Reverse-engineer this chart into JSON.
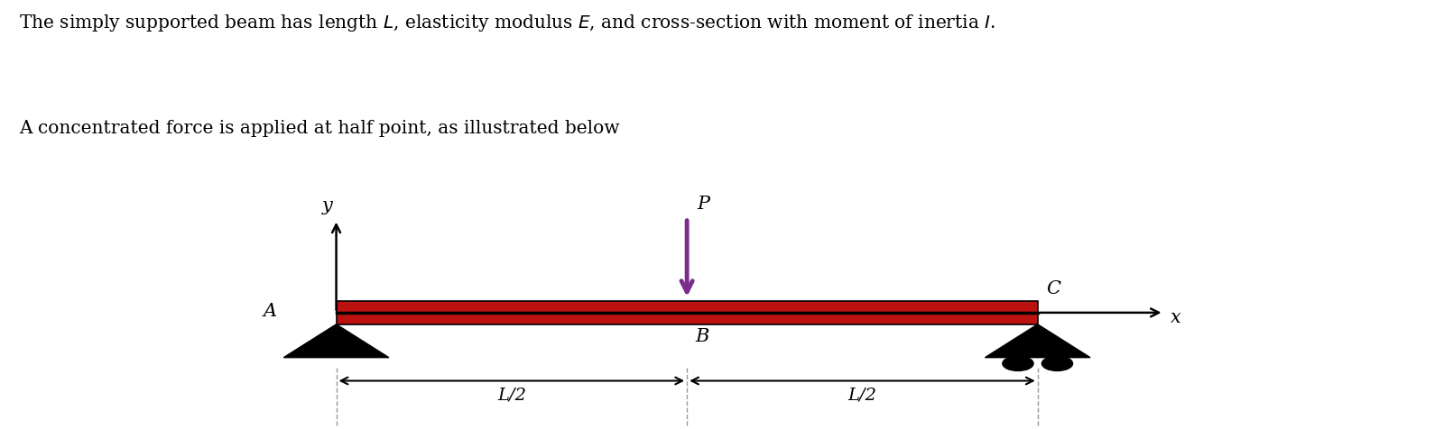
{
  "background_color": "#ffffff",
  "text_line1": "The simply supported beam has length $L$, elasticity modulus $E$, and cross-section with moment of inertia $I$.",
  "text_line2": "A concentrated force is applied at half point, as illustrated below",
  "beam_color": "#bb1111",
  "arrow_color_P": "#7b2d8b",
  "dashed_line_color": "#999999",
  "label_A": "A",
  "label_B": "B",
  "label_C": "C",
  "label_P": "P",
  "label_x": "x",
  "label_y": "y",
  "label_L2": "L/2",
  "text_fontsize": 14.5,
  "label_fontsize": 15
}
